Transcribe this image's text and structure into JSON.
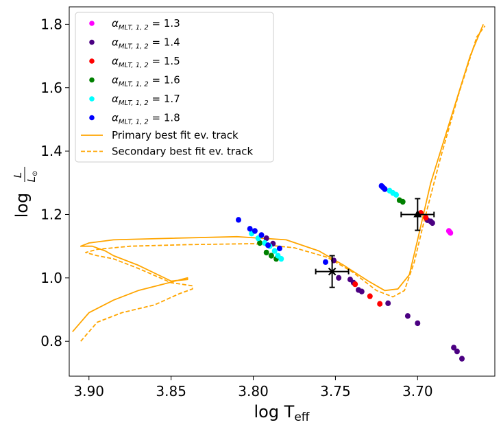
{
  "chart_data": {
    "type": "scatter",
    "title": "",
    "xlabel": {
      "base": "log T",
      "sub": "eff"
    },
    "ylabel": {
      "prefix": "log",
      "num": "L",
      "den": "L",
      "den_sub": "⊙"
    },
    "x_inverted": true,
    "xlim": [
      3.912,
      3.653
    ],
    "ylim": [
      0.69,
      1.855
    ],
    "xticks": [
      3.9,
      3.85,
      3.8,
      3.75,
      3.7
    ],
    "xtick_labels": [
      "3.90",
      "3.85",
      "3.80",
      "3.75",
      "3.70"
    ],
    "yticks": [
      0.8,
      1.0,
      1.2,
      1.4,
      1.6,
      1.8
    ],
    "ytick_labels": [
      "0.8",
      "1.0",
      "1.2",
      "1.4",
      "1.6",
      "1.8"
    ],
    "grid": false,
    "legend": {
      "position": "top-left",
      "scatter_entries": [
        {
          "alpha": "α",
          "sub": "MLT, 1, 2",
          "eq": " = 1.3",
          "color": "#ff00ff"
        },
        {
          "alpha": "α",
          "sub": "MLT, 1, 2",
          "eq": " = 1.4",
          "color": "#4b0082"
        },
        {
          "alpha": "α",
          "sub": "MLT, 1, 2",
          "eq": " = 1.5",
          "color": "#ff0000"
        },
        {
          "alpha": "α",
          "sub": "MLT, 1, 2",
          "eq": " = 1.6",
          "color": "#008000"
        },
        {
          "alpha": "α",
          "sub": "MLT, 1, 2",
          "eq": " = 1.7",
          "color": "#00ffff"
        },
        {
          "alpha": "α",
          "sub": "MLT, 1, 2",
          "eq": " = 1.8",
          "color": "#0000ff"
        }
      ],
      "line_entries": [
        {
          "label": "Primary best fit ev. track",
          "style": "solid",
          "color": "#ffa500"
        },
        {
          "label": "Secondary best fit ev. track",
          "style": "dashed",
          "color": "#ffa500"
        }
      ]
    },
    "series": [
      {
        "alpha_mlt": 1.3,
        "color": "#ff00ff",
        "points": [
          [
            3.681,
            1.148
          ],
          [
            3.6805,
            1.145
          ],
          [
            3.68,
            1.142
          ]
        ]
      },
      {
        "alpha_mlt": 1.4,
        "color": "#4b0082",
        "points": [
          [
            3.792,
            1.125
          ],
          [
            3.788,
            1.108
          ],
          [
            3.751,
            1.055
          ],
          [
            3.748,
            1.0
          ],
          [
            3.741,
            0.995
          ],
          [
            3.739,
            0.985
          ],
          [
            3.736,
            0.962
          ],
          [
            3.734,
            0.957
          ],
          [
            3.718,
            0.92
          ],
          [
            3.706,
            0.88
          ],
          [
            3.7,
            0.857
          ],
          [
            3.694,
            1.182
          ],
          [
            3.692,
            1.178
          ],
          [
            3.691,
            1.173
          ],
          [
            3.678,
            0.78
          ],
          [
            3.676,
            0.768
          ],
          [
            3.673,
            0.745
          ]
        ]
      },
      {
        "alpha_mlt": 1.5,
        "color": "#ff0000",
        "points": [
          [
            3.738,
            0.98
          ],
          [
            3.729,
            0.942
          ],
          [
            3.723,
            0.918
          ],
          [
            3.698,
            1.205
          ],
          [
            3.695,
            1.19
          ]
        ]
      },
      {
        "alpha_mlt": 1.6,
        "color": "#008000",
        "points": [
          [
            3.796,
            1.11
          ],
          [
            3.792,
            1.08
          ],
          [
            3.789,
            1.07
          ],
          [
            3.786,
            1.06
          ],
          [
            3.711,
            1.245
          ],
          [
            3.709,
            1.24
          ]
        ]
      },
      {
        "alpha_mlt": 1.7,
        "color": "#00ffff",
        "points": [
          [
            3.801,
            1.14
          ],
          [
            3.797,
            1.125
          ],
          [
            3.793,
            1.11
          ],
          [
            3.79,
            1.1
          ],
          [
            3.787,
            1.085
          ],
          [
            3.785,
            1.07
          ],
          [
            3.783,
            1.06
          ],
          [
            3.717,
            1.275
          ],
          [
            3.715,
            1.268
          ],
          [
            3.713,
            1.262
          ]
        ]
      },
      {
        "alpha_mlt": 1.8,
        "color": "#0000ff",
        "points": [
          [
            3.809,
            1.183
          ],
          [
            3.802,
            1.155
          ],
          [
            3.799,
            1.148
          ],
          [
            3.795,
            1.135
          ],
          [
            3.791,
            1.103
          ],
          [
            3.784,
            1.093
          ],
          [
            3.756,
            1.05
          ],
          [
            3.722,
            1.29
          ],
          [
            3.721,
            1.285
          ],
          [
            3.72,
            1.28
          ]
        ]
      }
    ],
    "observations": [
      {
        "x": 3.752,
        "y": 1.02,
        "xerr": 0.01,
        "yerr": 0.05,
        "marker": "x",
        "color": "#000000"
      },
      {
        "x": 3.7,
        "y": 1.2,
        "xerr": 0.01,
        "yerr": 0.05,
        "marker": "^",
        "color": "#000000"
      }
    ],
    "tracks": [
      {
        "name": "Primary best fit ev. track",
        "style": "solid",
        "color": "#ffa500",
        "points": [
          [
            3.91,
            0.83
          ],
          [
            3.9,
            0.89
          ],
          [
            3.885,
            0.93
          ],
          [
            3.87,
            0.96
          ],
          [
            3.855,
            0.98
          ],
          [
            3.84,
            1.0
          ],
          [
            3.84,
            0.995
          ],
          [
            3.85,
            0.99
          ],
          [
            3.87,
            1.04
          ],
          [
            3.885,
            1.07
          ],
          [
            3.89,
            1.085
          ],
          [
            3.898,
            1.1
          ],
          [
            3.905,
            1.1
          ],
          [
            3.9,
            1.11
          ],
          [
            3.885,
            1.12
          ],
          [
            3.85,
            1.125
          ],
          [
            3.81,
            1.13
          ],
          [
            3.78,
            1.12
          ],
          [
            3.76,
            1.085
          ],
          [
            3.745,
            1.04
          ],
          [
            3.73,
            0.99
          ],
          [
            3.72,
            0.96
          ],
          [
            3.712,
            0.965
          ],
          [
            3.705,
            1.01
          ],
          [
            3.7,
            1.12
          ],
          [
            3.692,
            1.3
          ],
          [
            3.68,
            1.5
          ],
          [
            3.668,
            1.7
          ],
          [
            3.66,
            1.8
          ]
        ]
      },
      {
        "name": "Secondary best fit ev. track",
        "style": "dashed",
        "color": "#ffa500",
        "points": [
          [
            3.905,
            0.8
          ],
          [
            3.895,
            0.86
          ],
          [
            3.88,
            0.89
          ],
          [
            3.86,
            0.915
          ],
          [
            3.845,
            0.95
          ],
          [
            3.837,
            0.965
          ],
          [
            3.837,
            0.975
          ],
          [
            3.85,
            0.985
          ],
          [
            3.87,
            1.03
          ],
          [
            3.885,
            1.06
          ],
          [
            3.895,
            1.07
          ],
          [
            3.902,
            1.08
          ],
          [
            3.895,
            1.09
          ],
          [
            3.875,
            1.1
          ],
          [
            3.84,
            1.105
          ],
          [
            3.8,
            1.108
          ],
          [
            3.775,
            1.095
          ],
          [
            3.755,
            1.065
          ],
          [
            3.74,
            1.02
          ],
          [
            3.725,
            0.96
          ],
          [
            3.715,
            0.94
          ],
          [
            3.708,
            0.96
          ],
          [
            3.702,
            1.05
          ],
          [
            3.696,
            1.18
          ],
          [
            3.686,
            1.38
          ],
          [
            3.675,
            1.58
          ],
          [
            3.664,
            1.76
          ],
          [
            3.659,
            1.795
          ]
        ]
      }
    ]
  }
}
